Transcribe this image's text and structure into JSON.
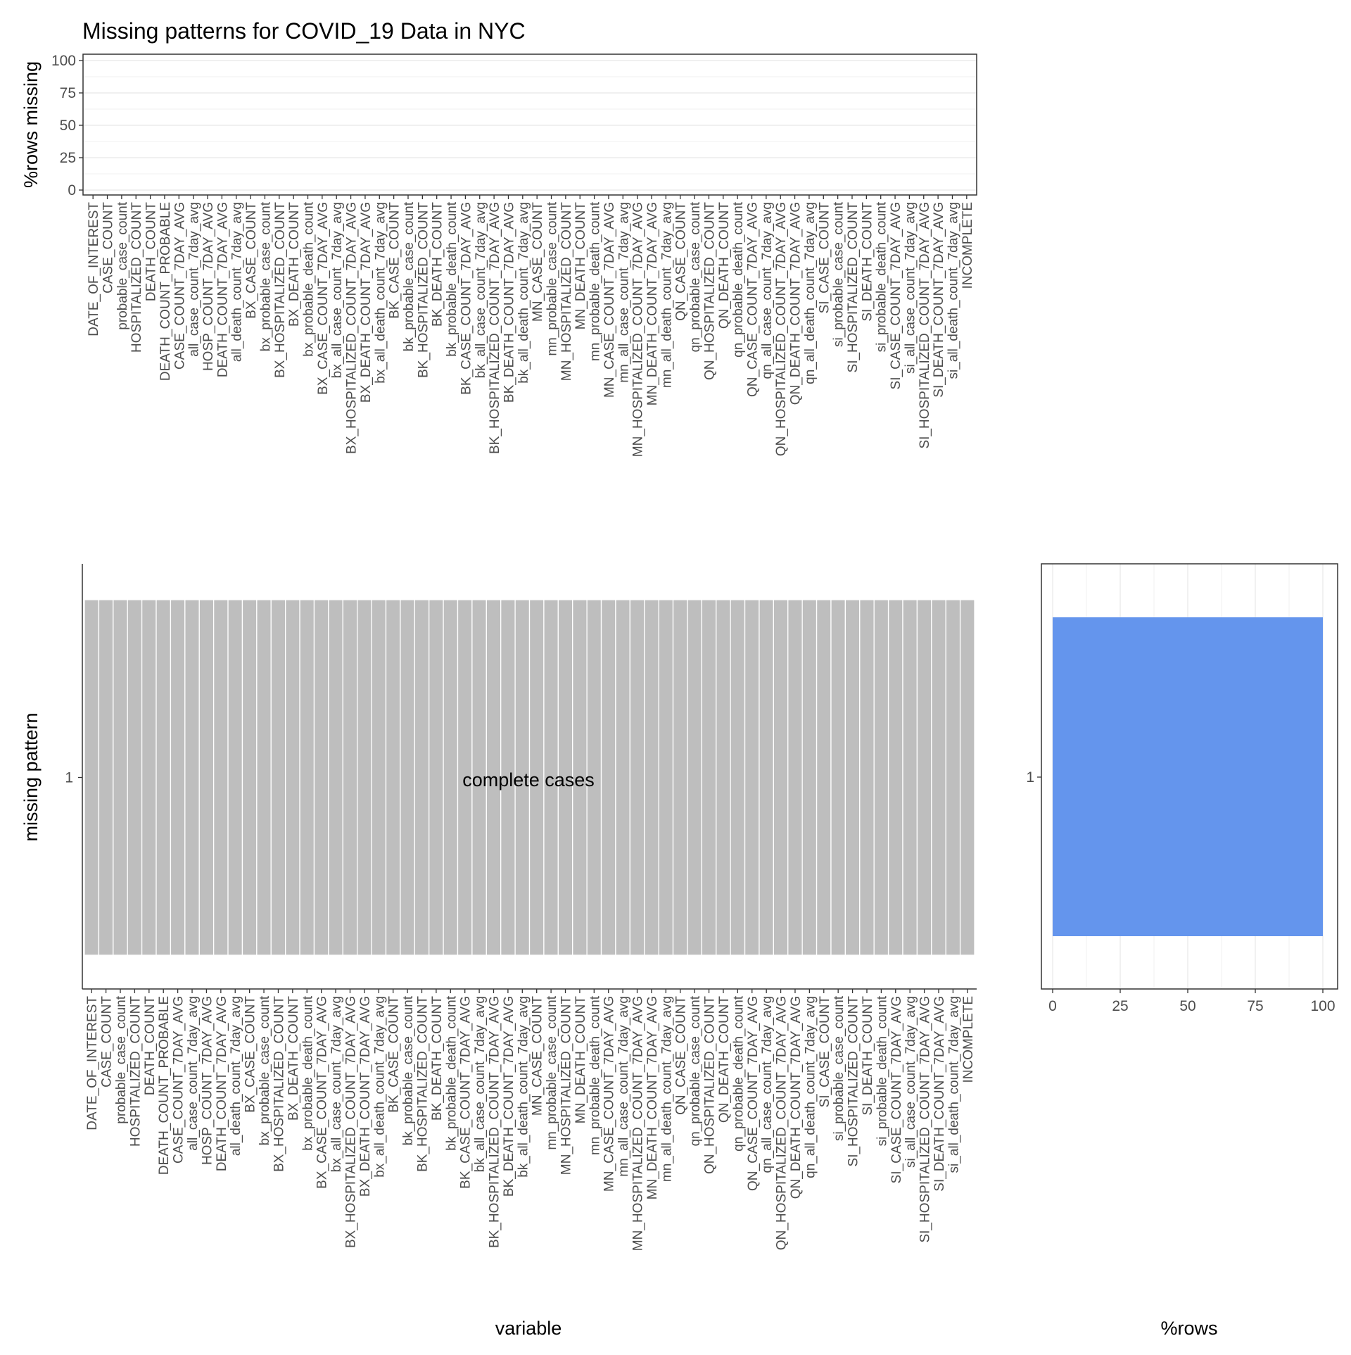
{
  "colors": {
    "tile_present": "#bebebe",
    "tile_border": "#ffffff",
    "bar_fill": "#6495ed",
    "grid": "#ebebeb",
    "axis_text": "#4d4d4d",
    "text": "#000000"
  },
  "chart_data": [
    {
      "type": "bar",
      "panel": "top",
      "title": "Missing patterns for COVID_19 Data in NYC",
      "xlabel": "",
      "ylabel": "%rows missing",
      "ylim": [
        0,
        100
      ],
      "yticks": [
        0,
        25,
        50,
        75,
        100
      ],
      "grid": true,
      "categories": [
        "DATE_OF_INTEREST",
        "CASE_COUNT",
        "probable_case_count",
        "HOSPITALIZED_COUNT",
        "DEATH_COUNT",
        "DEATH_COUNT_PROBABLE",
        "CASE_COUNT_7DAY_AVG",
        "all_case_count_7day_avg",
        "HOSP_COUNT_7DAY_AVG",
        "DEATH_COUNT_7DAY_AVG",
        "all_death_count_7day_avg",
        "BX_CASE_COUNT",
        "bx_probable_case_count",
        "BX_HOSPITALIZED_COUNT",
        "BX_DEATH_COUNT",
        "bx_probable_death_count",
        "BX_CASE_COUNT_7DAY_AVG",
        "bx_all_case_count_7day_avg",
        "BX_HOSPITALIZED_COUNT_7DAY_AVG",
        "BX_DEATH_COUNT_7DAY_AVG",
        "bx_all_death_count_7day_avg",
        "BK_CASE_COUNT",
        "bk_probable_case_count",
        "BK_HOSPITALIZED_COUNT",
        "BK_DEATH_COUNT",
        "bk_probable_death_count",
        "BK_CASE_COUNT_7DAY_AVG",
        "bk_all_case_count_7day_avg",
        "BK_HOSPITALIZED_COUNT_7DAY_AVG",
        "BK_DEATH_COUNT_7DAY_AVG",
        "bk_all_death_count_7day_avg",
        "MN_CASE_COUNT",
        "mn_probable_case_count",
        "MN_HOSPITALIZED_COUNT",
        "MN_DEATH_COUNT",
        "mn_probable_death_count",
        "MN_CASE_COUNT_7DAY_AVG",
        "mn_all_case_count_7day_avg",
        "MN_HOSPITALIZED_COUNT_7DAY_AVG",
        "MN_DEATH_COUNT_7DAY_AVG",
        "mn_all_death_count_7day_avg",
        "QN_CASE_COUNT",
        "qn_probable_case_count",
        "QN_HOSPITALIZED_COUNT",
        "QN_DEATH_COUNT",
        "qn_probable_death_count",
        "QN_CASE_COUNT_7DAY_AVG",
        "qn_all_case_count_7day_avg",
        "QN_HOSPITALIZED_COUNT_7DAY_AVG",
        "QN_DEATH_COUNT_7DAY_AVG",
        "qn_all_death_count_7day_avg",
        "SI_CASE_COUNT",
        "si_probable_case_count",
        "SI_HOSPITALIZED_COUNT",
        "SI_DEATH_COUNT",
        "si_probable_death_count",
        "SI_CASE_COUNT_7DAY_AVG",
        "si_all_case_count_7day_avg",
        "SI_HOSPITALIZED_COUNT_7DAY_AVG",
        "SI_DEATH_COUNT_7DAY_AVG",
        "si_all_death_count_7day_avg",
        "INCOMPLETE"
      ],
      "values": [
        0,
        0,
        0,
        0,
        0,
        0,
        0,
        0,
        0,
        0,
        0,
        0,
        0,
        0,
        0,
        0,
        0,
        0,
        0,
        0,
        0,
        0,
        0,
        0,
        0,
        0,
        0,
        0,
        0,
        0,
        0,
        0,
        0,
        0,
        0,
        0,
        0,
        0,
        0,
        0,
        0,
        0,
        0,
        0,
        0,
        0,
        0,
        0,
        0,
        0,
        0,
        0,
        0,
        0,
        0,
        0,
        0,
        0,
        0,
        0,
        0,
        0
      ]
    },
    {
      "type": "heatmap",
      "panel": "main",
      "xlabel": "variable",
      "ylabel": "missing pattern",
      "y_categories": [
        "1"
      ],
      "patterns": [
        {
          "id": "1",
          "missing": [],
          "label": "complete cases"
        }
      ]
    },
    {
      "type": "bar",
      "panel": "right",
      "orientation": "horizontal",
      "xlabel": "%rows",
      "ylabel": "",
      "xlim": [
        0,
        100
      ],
      "xticks": [
        0,
        25,
        50,
        75,
        100
      ],
      "grid": true,
      "categories": [
        "1"
      ],
      "values": [
        100
      ]
    }
  ]
}
